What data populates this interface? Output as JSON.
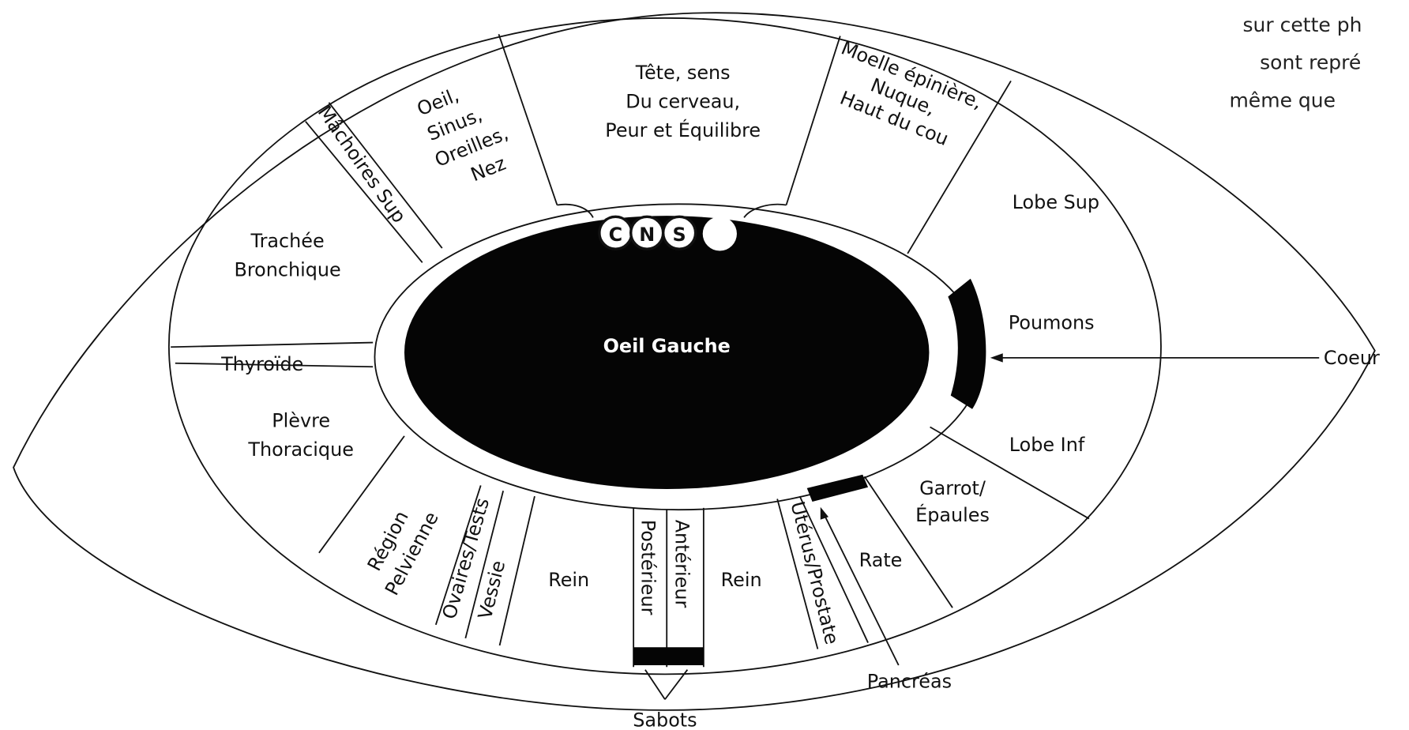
{
  "center_label": "Oeil Gauche",
  "cns": [
    "C",
    "N",
    "S"
  ],
  "side_text": [
    "sur cette ph",
    "sont repré",
    "même que"
  ],
  "regions": {
    "tete": [
      "Tête, sens",
      "Du cerveau,",
      "Peur et Équilibre"
    ],
    "oeil": [
      "Oeil,",
      "Sinus,",
      "Oreilles,",
      "Nez"
    ],
    "machoires": "Mâchoires Sup",
    "moelle": [
      "Moelle épinière,",
      "Nuque,",
      "Haut du cou"
    ],
    "lobe_sup": "Lobe Sup",
    "poumons": "Poumons",
    "lobe_inf": "Lobe Inf",
    "garrot": [
      "Garrot/",
      "Épaules"
    ],
    "rate": "Rate",
    "uterus": "Utérus/Prostate",
    "rein_right": "Rein",
    "anterieur": "Antérieur",
    "posterieur": "Postérieur",
    "rein_left": "Rein",
    "vessie": "Vessie",
    "ovaires": "Ovaires/Tests",
    "pelvienne": [
      "Région",
      "Pelvienne"
    ],
    "plevre": [
      "Plèvre",
      "Thoracique"
    ],
    "thyroide": "Thyroïde",
    "trachee": [
      "Trachée",
      "Bronchique"
    ]
  },
  "outer_labels": {
    "coeur": "Coeur",
    "pancreas": "Pancréas",
    "sabots": "Sabots"
  }
}
